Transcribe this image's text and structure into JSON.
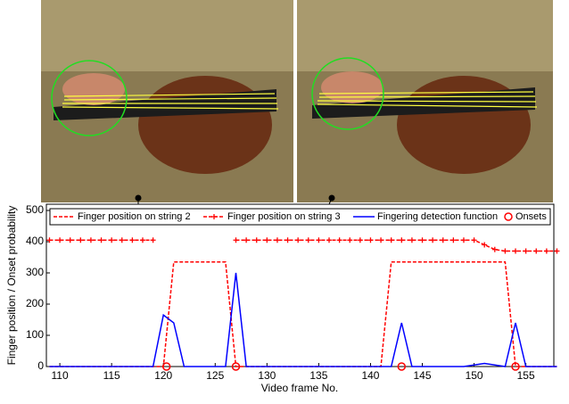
{
  "chart_data": {
    "type": "line",
    "xlabel": "Video frame No.",
    "ylabel": "Finger position / Onset probability",
    "x": [
      109,
      110,
      111,
      112,
      113,
      114,
      115,
      116,
      117,
      118,
      119,
      120,
      121,
      122,
      123,
      124,
      125,
      126,
      127,
      128,
      129,
      130,
      131,
      132,
      133,
      134,
      135,
      136,
      137,
      138,
      139,
      140,
      141,
      142,
      143,
      144,
      145,
      146,
      147,
      148,
      149,
      150,
      151,
      152,
      153,
      154,
      155,
      156,
      157,
      158
    ],
    "series": [
      {
        "name": "Finger position on string 2",
        "color": "#ff0000",
        "dash": true,
        "marker": "none",
        "values": [
          0,
          0,
          0,
          0,
          0,
          0,
          0,
          0,
          0,
          0,
          0,
          0,
          335,
          335,
          335,
          335,
          335,
          335,
          0,
          0,
          0,
          0,
          0,
          0,
          0,
          0,
          0,
          0,
          0,
          0,
          0,
          0,
          0,
          335,
          335,
          335,
          335,
          335,
          335,
          335,
          335,
          335,
          335,
          335,
          335,
          0,
          0,
          0,
          0,
          0
        ]
      },
      {
        "name": "Finger position on string 3",
        "color": "#ff0000",
        "dash": true,
        "marker": "plus",
        "values": [
          405,
          405,
          405,
          405,
          405,
          405,
          405,
          405,
          405,
          405,
          405,
          null,
          null,
          null,
          null,
          null,
          null,
          null,
          405,
          405,
          405,
          405,
          405,
          405,
          405,
          405,
          405,
          405,
          405,
          405,
          405,
          405,
          405,
          405,
          405,
          405,
          405,
          405,
          405,
          405,
          405,
          405,
          390,
          375,
          370,
          370,
          370,
          370,
          370,
          370
        ]
      },
      {
        "name": "Fingering detection function",
        "color": "#0000ff",
        "dash": false,
        "marker": "none",
        "values": [
          0,
          0,
          0,
          0,
          0,
          0,
          0,
          0,
          0,
          0,
          0,
          165,
          140,
          0,
          0,
          0,
          0,
          0,
          300,
          0,
          0,
          0,
          0,
          0,
          0,
          0,
          0,
          0,
          0,
          0,
          0,
          0,
          0,
          0,
          140,
          0,
          0,
          0,
          0,
          0,
          0,
          5,
          10,
          5,
          0,
          140,
          0,
          0,
          0,
          0
        ]
      },
      {
        "name": "Onsets",
        "color": "#ff0000",
        "dash": false,
        "marker": "circle",
        "nolines": true,
        "x": [
          120.3,
          127,
          143,
          154
        ],
        "values": [
          0,
          0,
          0,
          0
        ]
      }
    ],
    "xlim": [
      108.7,
      157.7
    ],
    "xticks": [
      110,
      115,
      120,
      125,
      130,
      135,
      140,
      145,
      150,
      155
    ],
    "ylim": [
      0,
      520
    ],
    "yticks": [
      0,
      100,
      200,
      300,
      400,
      500
    ]
  }
}
